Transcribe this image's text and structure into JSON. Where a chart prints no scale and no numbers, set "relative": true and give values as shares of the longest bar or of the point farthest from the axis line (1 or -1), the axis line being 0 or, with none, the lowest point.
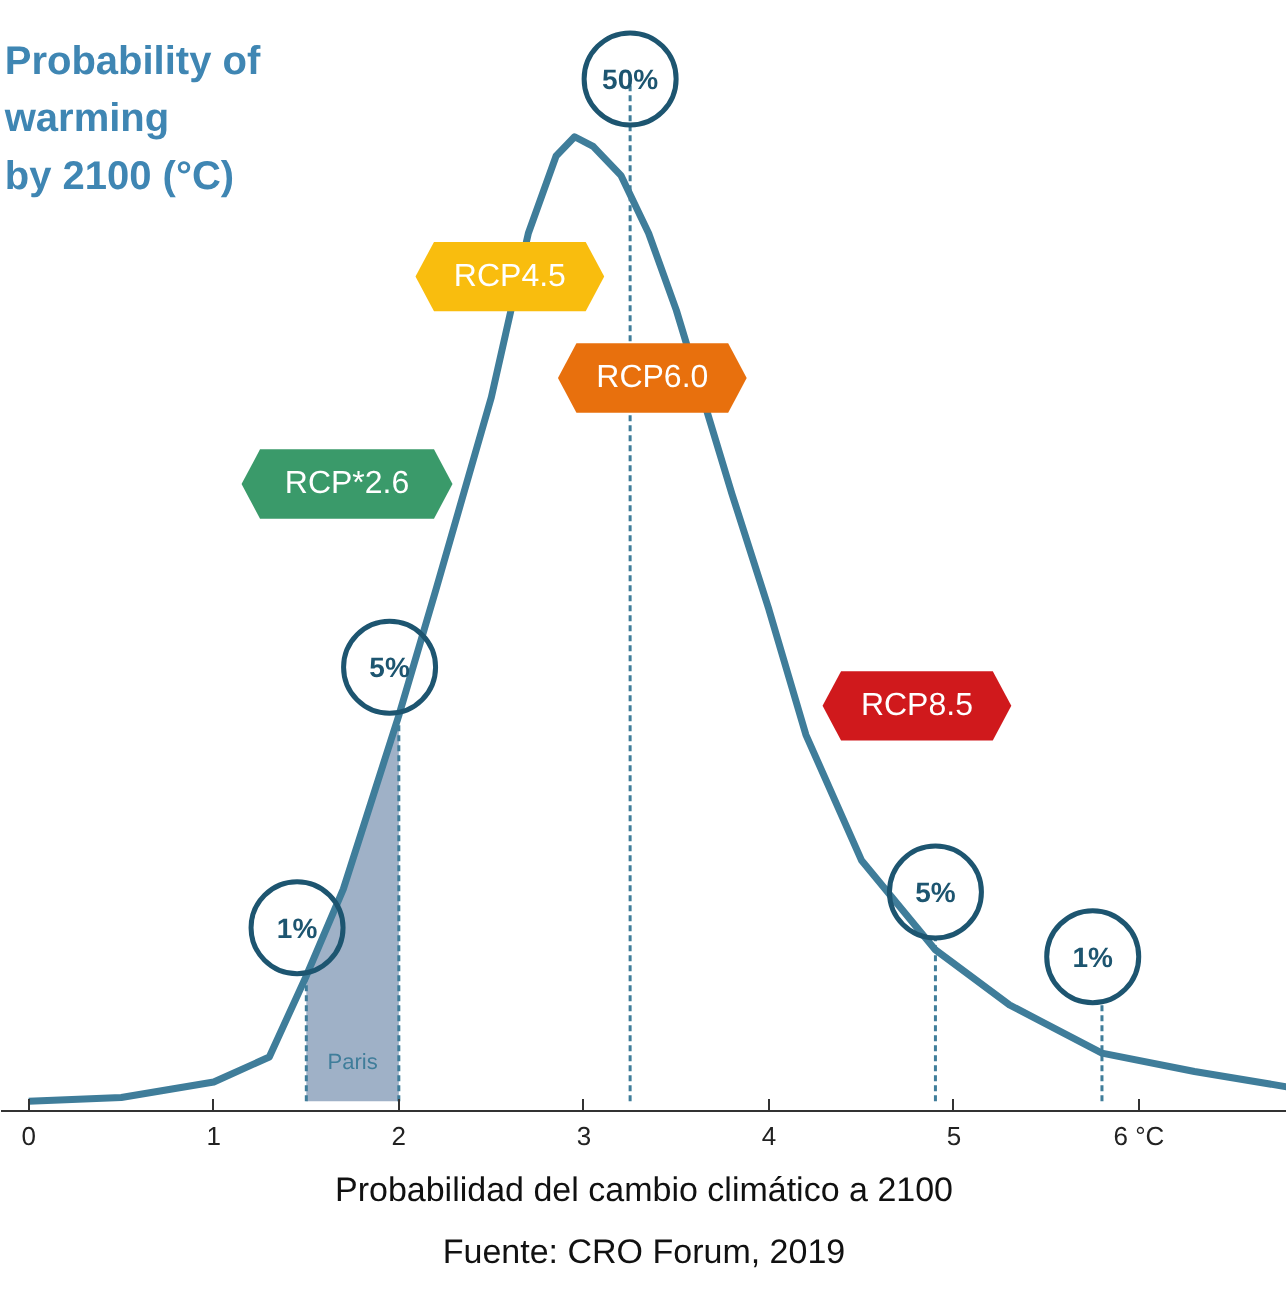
{
  "chart_data": {
    "type": "line",
    "title": "Probability of\nwarming\nby 2100 (°C)",
    "relative": true,
    "xlim": [
      -0.15,
      6.8
    ],
    "xticks": [
      0,
      1,
      2,
      3,
      4,
      5,
      {
        "value": 6,
        "label": "6 °C"
      }
    ],
    "grid": false,
    "series": [
      {
        "color": "#3f7d9a",
        "x": [
          0,
          0.5,
          1.0,
          1.3,
          1.5,
          1.7,
          1.85,
          2.0,
          2.2,
          2.5,
          2.7,
          2.85,
          2.95,
          3.05,
          3.2,
          3.35,
          3.5,
          3.8,
          4.0,
          4.2,
          4.5,
          4.9,
          5.3,
          5.8,
          6.3,
          6.8
        ],
        "values": [
          0,
          0.004,
          0.02,
          0.046,
          0.13,
          0.22,
          0.31,
          0.4,
          0.53,
          0.73,
          0.9,
          0.98,
          1.0,
          0.99,
          0.96,
          0.9,
          0.82,
          0.63,
          0.51,
          0.38,
          0.25,
          0.157,
          0.1,
          0.05,
          0.031,
          0.015
        ]
      },
      {
        "type": "area",
        "color": "#9fb1c7",
        "x": [
          1.5,
          1.7,
          1.85,
          2.0
        ],
        "values": [
          0.13,
          0.22,
          0.31,
          0.4
        ]
      }
    ],
    "ref_lines": [
      {
        "axis": "x",
        "value": 1.5,
        "line_style": "dashed"
      },
      {
        "axis": "x",
        "value": 2.0,
        "line_style": "dashed"
      },
      {
        "axis": "x",
        "value": 3.25,
        "line_style": "dashed"
      },
      {
        "axis": "x",
        "value": 4.9,
        "line_style": "dashed"
      },
      {
        "axis": "x",
        "value": 5.8,
        "line_style": "dashed"
      }
    ],
    "annotations": [
      {
        "text": "1%",
        "x": 1.5,
        "y": 0.13
      },
      {
        "text": "5%",
        "x": 2.0,
        "y": 0.4
      },
      {
        "text": "50%",
        "x": 3.25,
        "y": 1.06
      },
      {
        "text": "5%",
        "x": 4.9,
        "y": 0.157
      },
      {
        "text": "1%",
        "x": 5.8,
        "y": 0.05
      },
      "Paris",
      "RCP4.5",
      "RCP6.0",
      "RCP*2.6",
      "RCP8.5",
      "Probabilidad del cambio climático a 2100",
      "Fuente: CRO Forum, 2019"
    ]
  }
}
